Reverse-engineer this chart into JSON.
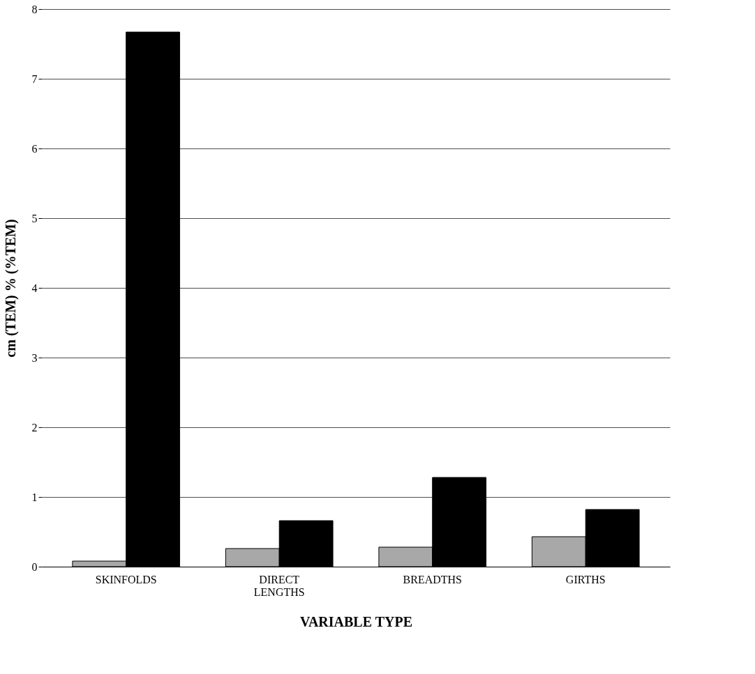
{
  "chart_data": {
    "type": "bar",
    "xlabel": "VARIABLE TYPE",
    "ylabel": "cm (TEM) % (%TEM)",
    "categories": [
      "SKINFOLDS",
      "DIRECT LENGTHS",
      "BREADTHS",
      "GIRTHS"
    ],
    "series": [
      {
        "color": "#a8a8a8",
        "values": [
          0.08,
          0.26,
          0.28,
          0.43
        ]
      },
      {
        "color": "#000000",
        "values": [
          7.67,
          0.66,
          1.28,
          0.82
        ]
      }
    ],
    "ylim": [
      0,
      8
    ],
    "yticks": [
      0,
      1,
      2,
      3,
      4,
      5,
      6,
      7,
      8
    ],
    "grid": "y",
    "legend": false
  }
}
